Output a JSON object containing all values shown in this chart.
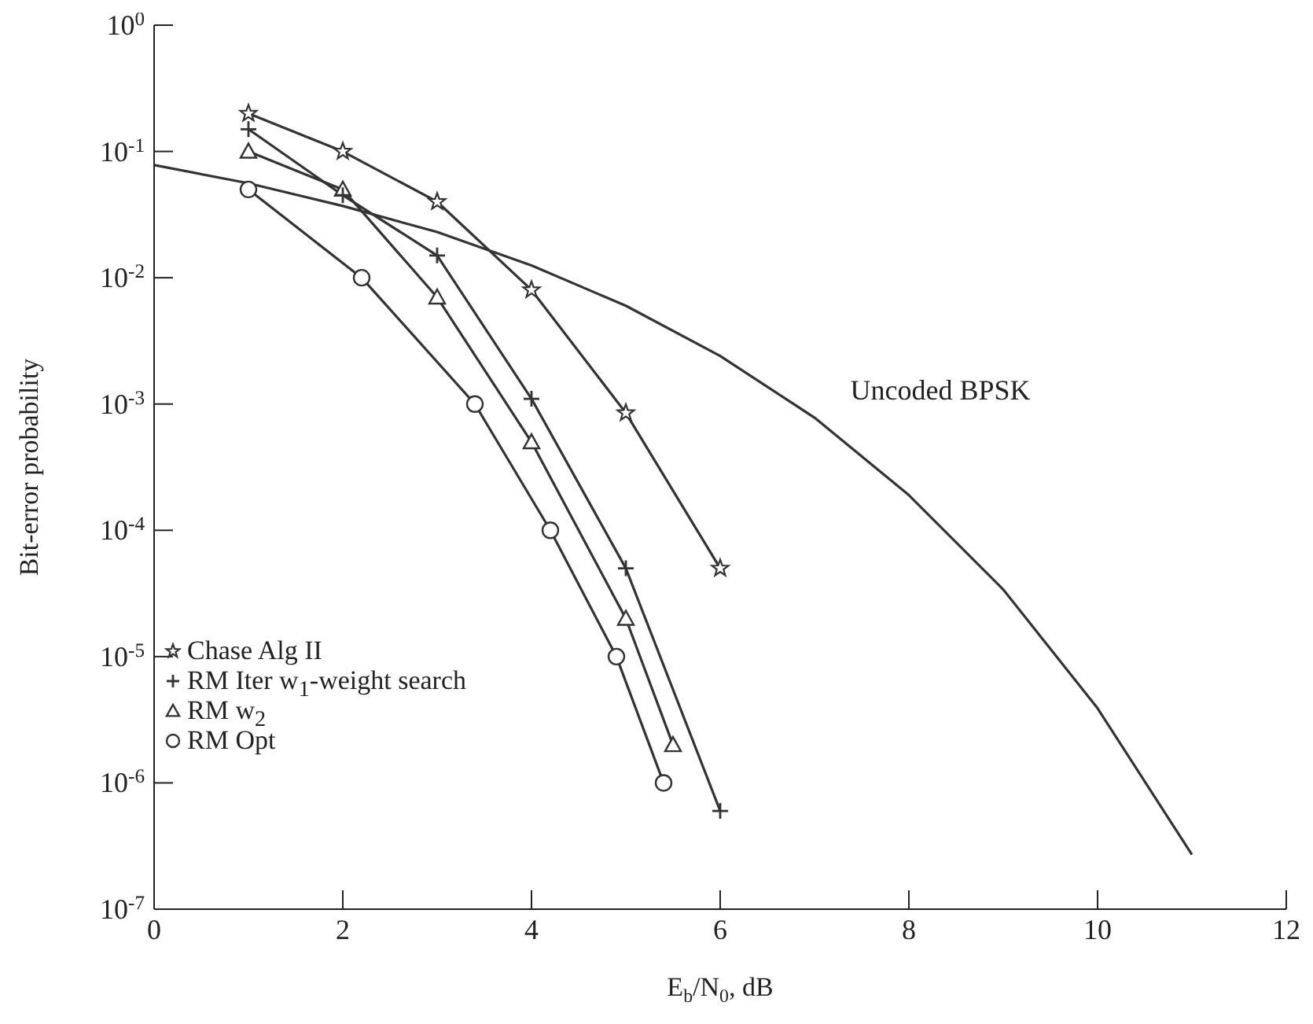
{
  "chart_data": {
    "type": "line",
    "xlabel": "E$_{b}$/N$_{0}$, dB",
    "ylabel": "Bit-error probability",
    "log": "y",
    "xlim": [
      0,
      12
    ],
    "xticks": [
      0,
      2,
      4,
      6,
      8,
      10,
      12
    ],
    "ylim": [
      1e-07,
      1
    ],
    "yticks": [
      {
        "value": 1,
        "label": "10$^{0}$"
      },
      {
        "value": 0.1,
        "label": "10$^{-1}$"
      },
      {
        "value": 0.01,
        "label": "10$^{-2}$"
      },
      {
        "value": 0.001,
        "label": "10$^{-3}$"
      },
      {
        "value": 0.0001,
        "label": "10$^{-4}$"
      },
      {
        "value": 1e-05,
        "label": "10$^{-5}$"
      },
      {
        "value": 1e-06,
        "label": "10$^{-6}$"
      },
      {
        "value": 1e-07,
        "label": "10$^{-7}$"
      }
    ],
    "legend": "left",
    "line_style": "solid",
    "series": [
      {
        "name": "Chase Alg II",
        "color": "#333333",
        "marker": "star",
        "x": [
          1,
          2,
          3,
          4,
          5,
          6
        ],
        "values": [
          0.2,
          0.1,
          0.04,
          0.008,
          0.00085,
          5e-05
        ]
      },
      {
        "name": "RM Iter w$_{1}$-weight search",
        "color": "#333333",
        "marker": "cross",
        "x": [
          1,
          2,
          3,
          4,
          5,
          6
        ],
        "values": [
          0.15,
          0.045,
          0.015,
          0.0011,
          5e-05,
          6e-07
        ]
      },
      {
        "name": "RM w$_{2}$",
        "color": "#333333",
        "marker": "triangle",
        "x": [
          1,
          2,
          3,
          4,
          5,
          5.5
        ],
        "values": [
          0.1,
          0.05,
          0.007,
          0.0005,
          2e-05,
          2e-06
        ]
      },
      {
        "name": "RM Opt",
        "color": "#333333",
        "marker": "circle",
        "x": [
          1,
          2.2,
          3.4,
          4.2,
          4.9,
          5.4
        ],
        "values": [
          0.05,
          0.01,
          0.001,
          0.0001,
          1e-05,
          1e-06
        ]
      },
      {
        "color": "#333333",
        "marker": "none",
        "x": [
          0,
          1,
          2,
          3,
          4,
          5,
          6,
          7,
          8,
          9,
          10,
          11
        ],
        "values": [
          0.078,
          0.056,
          0.037,
          0.023,
          0.0125,
          0.006,
          0.0024,
          0.00078,
          0.00019,
          3.4e-05,
          3.9e-06,
          2.7e-07
        ]
      }
    ],
    "annotations": [
      "Uncoded BPSK"
    ]
  }
}
